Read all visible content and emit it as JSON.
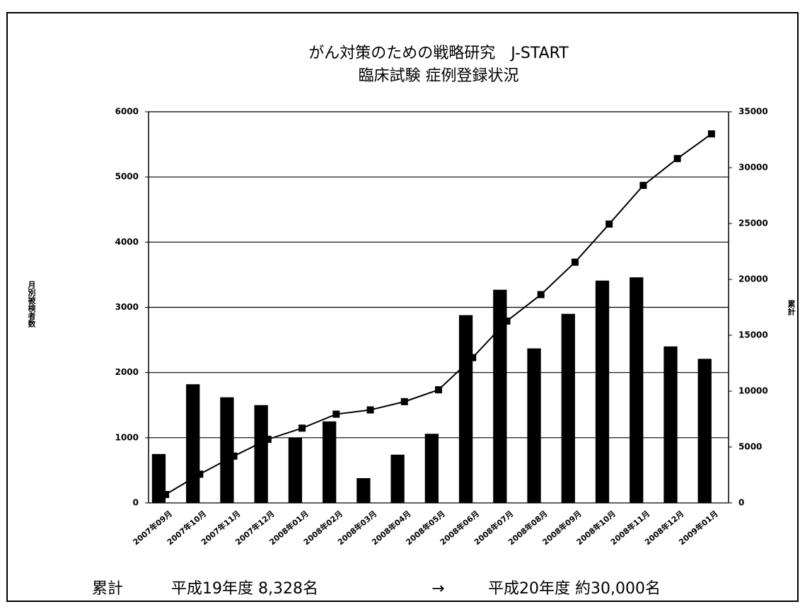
{
  "chart_data": {
    "type": "bar_line",
    "title": "がん対策のための戦略研究　J-START",
    "subtitle": "臨床試験 症例登録状況",
    "y_label": "月別被検者数",
    "y2_label": "累計",
    "categories": [
      "2007年09月",
      "2007年10月",
      "2007年11月",
      "2007年12月",
      "2008年01月",
      "2008年02月",
      "2008年03月",
      "2008年04月",
      "2008年05月",
      "2008年06月",
      "2008年07月",
      "2008年08月",
      "2008年09月",
      "2008年10月",
      "2008年11月",
      "2008年12月",
      "2009年01月"
    ],
    "series": [
      {
        "name": "月別",
        "type": "bar",
        "color": "#000000",
        "values": [
          750,
          1820,
          1620,
          1500,
          1000,
          1250,
          380,
          740,
          1060,
          2880,
          3270,
          2370,
          2900,
          3410,
          3460,
          2400,
          2210
        ]
      },
      {
        "name": "累計",
        "type": "line",
        "axis": "y2",
        "color": "#000000",
        "values": [
          750,
          2570,
          4190,
          5690,
          6690,
          7940,
          8320,
          9060,
          10120,
          13000,
          16270,
          18640,
          21540,
          24950,
          28410,
          30810,
          33020
        ]
      }
    ],
    "ylim": [
      0,
      6000
    ],
    "yticks": [
      0,
      1000,
      2000,
      3000,
      4000,
      5000,
      6000
    ],
    "y2lim": [
      0,
      35000
    ],
    "y2ticks": [
      0,
      5000,
      10000,
      15000,
      20000,
      25000,
      30000,
      35000
    ],
    "grid": true,
    "footer": {
      "label": "累計",
      "left": "平成19年度 8,328名",
      "arrow": "→",
      "right": "平成20年度 約30,000名"
    }
  }
}
